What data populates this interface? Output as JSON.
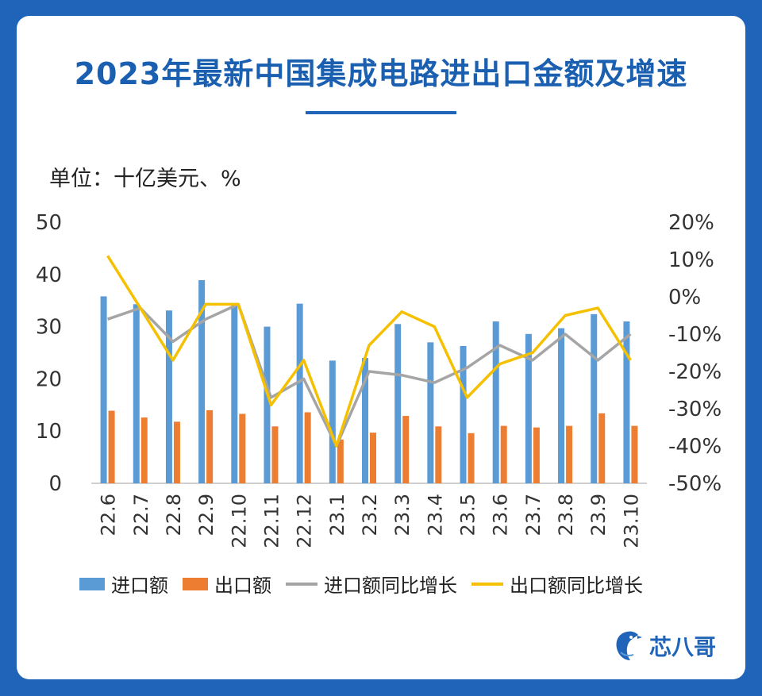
{
  "title": "2023年最新中国集成电路进出口金额及增速",
  "unit_label": "单位：十亿美元、%",
  "brand": {
    "name": "芯八哥",
    "icon": "bird-logo-icon"
  },
  "colors": {
    "bg": "#1f64b8",
    "import": "#5b9bd5",
    "export": "#ed7d31",
    "import_yoy": "#a5a5a5",
    "export_yoy": "#f5c000"
  },
  "legend": {
    "import": "进口额",
    "export": "出口额",
    "import_yoy": "进口额同比增长",
    "export_yoy": "出口额同比增长"
  },
  "chart_data": {
    "type": "bar",
    "categories": [
      "22.6",
      "22.7",
      "22.8",
      "22.9",
      "22.10",
      "22.11",
      "22.12",
      "23.1",
      "23.2",
      "23.3",
      "23.4",
      "23.5",
      "23.6",
      "23.7",
      "23.8",
      "23.9",
      "23.10"
    ],
    "y_left": {
      "ylim": [
        0,
        50
      ],
      "ticks": [
        "0",
        "10",
        "20",
        "30",
        "40",
        "50"
      ]
    },
    "y_right": {
      "ylim": [
        -50,
        20
      ],
      "ticks": [
        "-50%",
        "-40%",
        "-30%",
        "-20%",
        "-10%",
        "0%",
        "10%",
        "20%"
      ]
    },
    "series": [
      {
        "name": "进口额",
        "type": "bar",
        "axis": "left",
        "values": [
          35.8,
          34.3,
          33.1,
          38.9,
          34.0,
          30.0,
          34.4,
          23.5,
          24.0,
          30.5,
          27.0,
          26.3,
          31.0,
          28.6,
          29.7,
          32.4,
          31.0
        ]
      },
      {
        "name": "出口额",
        "type": "bar",
        "axis": "left",
        "values": [
          13.9,
          12.6,
          11.8,
          14.0,
          13.3,
          10.9,
          13.6,
          8.4,
          9.7,
          12.9,
          10.9,
          9.6,
          11.0,
          10.7,
          11.0,
          13.4,
          11.0
        ]
      },
      {
        "name": "进口额同比增长",
        "type": "line",
        "axis": "right",
        "values": [
          -6,
          -3,
          -12,
          -6,
          -2,
          -27,
          -22,
          -40,
          -20,
          -21,
          -23,
          -19,
          -13,
          -17,
          -10,
          -17,
          -10
        ]
      },
      {
        "name": "出口额同比增长",
        "type": "line",
        "axis": "right",
        "values": [
          11,
          -3,
          -17,
          -2,
          -2,
          -29,
          -17,
          -40,
          -13,
          -4,
          -8,
          -27,
          -18,
          -15,
          -5,
          -3,
          -17
        ]
      }
    ],
    "grid": false,
    "legend_position": "bottom"
  }
}
